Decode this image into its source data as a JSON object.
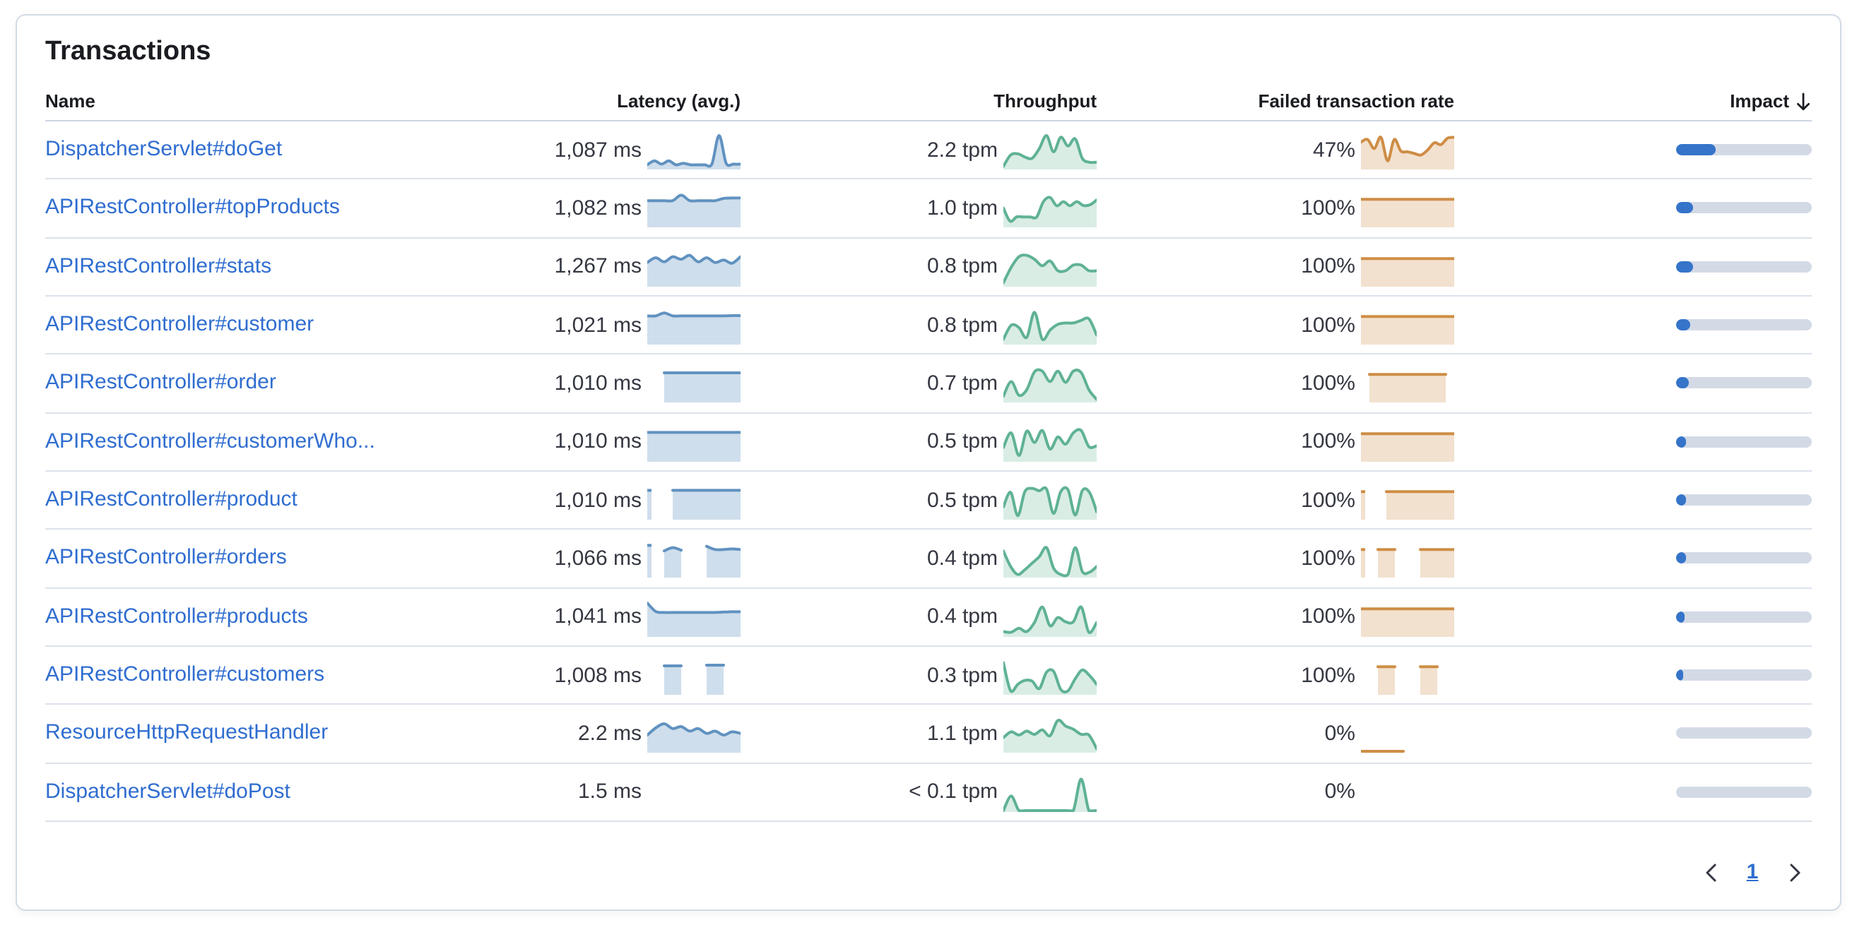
{
  "panel": {
    "title": "Transactions"
  },
  "colors": {
    "link": "#2F6DD0",
    "latency_line": "#6092C0",
    "latency_fill": "rgba(96,146,192,0.30)",
    "throughput_line": "#5FB294",
    "throughput_fill": "rgba(95,178,148,0.24)",
    "failed_line": "#CE8D45",
    "failed_fill": "rgba(206,141,69,0.26)",
    "impact_fill": "#3574C9",
    "impact_track": "#D3DAE6",
    "header_text": "#1A1C21",
    "value_text": "#343741"
  },
  "table": {
    "columns": {
      "name": "Name",
      "latency": "Latency (avg.)",
      "throughput": "Throughput",
      "failed_rate": "Failed transaction rate",
      "impact": "Impact"
    },
    "sort": {
      "column": "impact",
      "direction": "descending"
    },
    "rows": [
      {
        "name": "DispatcherServlet#doGet",
        "latency": "1,087 ms",
        "throughput": "2.2 tpm",
        "failed_rate": "47%",
        "impact_pct": 29,
        "latency_spark": [
          0.1,
          0.22,
          0.12,
          0.22,
          0.1,
          0.15,
          0.1,
          0.1,
          0.1,
          0.12,
          1.0,
          0.15,
          0.12,
          0.12
        ],
        "throughput_spark": [
          0.05,
          0.4,
          0.44,
          0.34,
          0.3,
          0.6,
          1.0,
          0.5,
          0.95,
          0.68,
          0.9,
          0.3,
          0.18,
          0.18
        ],
        "failed_spark": [
          0.8,
          0.88,
          0.6,
          0.95,
          0.22,
          0.88,
          0.52,
          0.5,
          0.45,
          0.4,
          0.55,
          0.78,
          0.72,
          0.92,
          0.95
        ]
      },
      {
        "name": "APIRestController#topProducts",
        "latency": "1,082 ms",
        "throughput": "1.0 tpm",
        "failed_rate": "100%",
        "impact_pct": 12.5,
        "latency_spark": [
          0.78,
          0.78,
          0.78,
          0.78,
          0.95,
          0.78,
          0.78,
          0.78,
          0.78,
          0.85,
          0.86,
          0.86
        ],
        "throughput_spark": [
          0.55,
          0.15,
          0.28,
          0.28,
          0.28,
          0.28,
          0.75,
          0.88,
          0.62,
          0.75,
          0.62,
          0.75,
          0.63,
          0.65,
          0.8
        ],
        "failed_spark": [
          0.82,
          0.82,
          0.82,
          0.82,
          0.82,
          0.82,
          0.82,
          0.82,
          0.82,
          0.82,
          0.82,
          0.82
        ]
      },
      {
        "name": "APIRestController#stats",
        "latency": "1,267 ms",
        "throughput": "0.8 tpm",
        "failed_rate": "100%",
        "impact_pct": 12.5,
        "latency_spark": [
          0.7,
          0.85,
          0.72,
          0.88,
          0.8,
          0.92,
          0.72,
          0.85,
          0.7,
          0.78,
          0.68,
          0.88
        ],
        "throughput_spark": [
          0.08,
          0.55,
          0.88,
          0.92,
          0.8,
          0.6,
          0.75,
          0.45,
          0.45,
          0.62,
          0.62,
          0.45,
          0.45
        ],
        "failed_spark": [
          0.82,
          0.82,
          0.82,
          0.82,
          0.82,
          0.82,
          0.82,
          0.82,
          0.82,
          0.82,
          0.82,
          0.82
        ]
      },
      {
        "name": "APIRestController#customer",
        "latency": "1,021 ms",
        "throughput": "0.8 tpm",
        "failed_rate": "100%",
        "impact_pct": 10.5,
        "latency_spark": [
          0.84,
          0.84,
          0.93,
          0.84,
          0.84,
          0.84,
          0.84,
          0.84,
          0.84,
          0.84,
          0.85,
          0.85
        ],
        "throughput_spark": [
          0.12,
          0.55,
          0.48,
          0.18,
          0.95,
          0.12,
          0.4,
          0.58,
          0.62,
          0.62,
          0.7,
          0.75,
          0.25
        ],
        "failed_spark": [
          0.82,
          0.82,
          0.82,
          0.82,
          0.82,
          0.82,
          0.82,
          0.82,
          0.82,
          0.82,
          0.82,
          0.82
        ]
      },
      {
        "name": "APIRestController#order",
        "latency": "1,010 ms",
        "throughput": "0.7 tpm",
        "failed_rate": "100%",
        "impact_pct": 9,
        "latency_spark": [
          null,
          null,
          0.87,
          0.87,
          0.87,
          0.87,
          0.87,
          0.87,
          0.87,
          0.87,
          0.87,
          0.87
        ],
        "throughput_spark": [
          0.15,
          0.6,
          0.18,
          0.35,
          0.9,
          0.92,
          0.6,
          0.92,
          0.58,
          0.92,
          0.88,
          0.35,
          0.05
        ],
        "failed_spark": [
          null,
          0.82,
          0.82,
          0.82,
          0.82,
          0.82,
          0.82,
          0.82,
          0.82,
          0.82,
          0.82,
          null
        ]
      },
      {
        "name": "APIRestController#customerWho...",
        "latency": "1,010 ms",
        "throughput": "0.5 tpm",
        "failed_rate": "100%",
        "impact_pct": 7.5,
        "latency_spark": [
          0.86,
          0.86,
          0.86,
          0.86,
          0.86,
          0.86,
          0.86,
          0.86,
          0.86,
          0.86,
          0.86,
          0.86
        ],
        "throughput_spark": [
          0.4,
          0.85,
          0.15,
          0.9,
          0.55,
          0.92,
          0.35,
          0.72,
          0.5,
          0.85,
          0.92,
          0.42,
          0.45
        ],
        "failed_spark": [
          0.82,
          0.82,
          0.82,
          0.82,
          0.82,
          0.82,
          0.82,
          0.82,
          0.82,
          0.82,
          0.82,
          0.82
        ]
      },
      {
        "name": "APIRestController#product",
        "latency": "1,010 ms",
        "throughput": "0.5 tpm",
        "failed_rate": "100%",
        "impact_pct": 7.5,
        "latency_spark": [
          0.86,
          null,
          null,
          0.86,
          0.86,
          0.86,
          0.86,
          0.86,
          0.86,
          0.86,
          0.86,
          0.86
        ],
        "throughput_spark": [
          0.35,
          0.8,
          0.08,
          0.82,
          0.92,
          0.85,
          0.9,
          0.15,
          0.82,
          0.88,
          0.1,
          0.85,
          0.8,
          0.2
        ],
        "failed_spark": [
          0.82,
          null,
          null,
          0.82,
          0.82,
          0.82,
          0.82,
          0.82,
          0.82,
          0.82,
          0.82,
          0.82
        ]
      },
      {
        "name": "APIRestController#orders",
        "latency": "1,066 ms",
        "throughput": "0.4 tpm",
        "failed_rate": "100%",
        "impact_pct": 7,
        "latency_spark": [
          0.95,
          null,
          0.78,
          0.88,
          0.8,
          null,
          null,
          0.92,
          0.82,
          0.82,
          0.84,
          0.82
        ],
        "throughput_spark": [
          0.78,
          0.3,
          0.05,
          0.2,
          0.4,
          0.6,
          0.88,
          0.25,
          0.05,
          0.05,
          0.88,
          0.15,
          0.12,
          0.3
        ],
        "failed_spark": [
          0.82,
          null,
          0.82,
          0.82,
          0.82,
          null,
          null,
          0.82,
          0.82,
          0.82,
          0.82,
          0.82
        ]
      },
      {
        "name": "APIRestController#products",
        "latency": "1,041 ms",
        "throughput": "0.4 tpm",
        "failed_rate": "100%",
        "impact_pct": 6.5,
        "latency_spark": [
          1.0,
          0.74,
          0.71,
          0.71,
          0.71,
          0.71,
          0.71,
          0.71,
          0.71,
          0.72,
          0.73,
          0.73
        ],
        "throughput_spark": [
          0.12,
          0.1,
          0.22,
          0.12,
          0.4,
          0.88,
          0.3,
          0.55,
          0.42,
          0.42,
          0.88,
          0.1,
          0.4
        ],
        "failed_spark": [
          0.82,
          0.82,
          0.82,
          0.82,
          0.82,
          0.82,
          0.82,
          0.82,
          0.82,
          0.82,
          0.82,
          0.82
        ]
      },
      {
        "name": "APIRestController#customers",
        "latency": "1,008 ms",
        "throughput": "0.3 tpm",
        "failed_rate": "100%",
        "impact_pct": 5.5,
        "latency_spark": [
          null,
          null,
          0.85,
          0.85,
          0.85,
          null,
          null,
          0.87,
          0.87,
          0.87,
          null,
          null
        ],
        "throughput_spark": [
          0.95,
          0.08,
          0.28,
          0.4,
          0.38,
          0.15,
          0.65,
          0.68,
          0.12,
          0.08,
          0.45,
          0.72,
          0.55,
          0.28
        ],
        "failed_spark": [
          null,
          null,
          0.82,
          0.82,
          0.82,
          null,
          null,
          0.82,
          0.82,
          0.82,
          null,
          null
        ]
      },
      {
        "name": "ResourceHttpRequestHandler",
        "latency": "2.2 ms",
        "throughput": "1.1 tpm",
        "failed_rate": "0%",
        "impact_pct": 0,
        "latency_spark": [
          0.5,
          0.72,
          0.85,
          0.7,
          0.76,
          0.62,
          0.7,
          0.55,
          0.62,
          0.5,
          0.6,
          0.55
        ],
        "throughput_spark": [
          0.42,
          0.6,
          0.5,
          0.62,
          0.52,
          0.66,
          0.48,
          0.95,
          0.78,
          0.68,
          0.52,
          0.5,
          0.08
        ],
        "failed_spark": [
          0,
          0,
          0,
          0,
          0,
          0,
          null,
          null,
          null,
          null,
          null,
          null
        ]
      },
      {
        "name": "DispatcherServlet#doPost",
        "latency": "1.5 ms",
        "throughput": "< 0.1 tpm",
        "failed_rate": "0%",
        "impact_pct": 0,
        "latency_spark": [],
        "throughput_spark": [
          0,
          0.45,
          0,
          0,
          0,
          0,
          0,
          0,
          0,
          0,
          0.97,
          0,
          0
        ],
        "failed_spark": []
      }
    ]
  },
  "pagination": {
    "current_page": "1"
  }
}
